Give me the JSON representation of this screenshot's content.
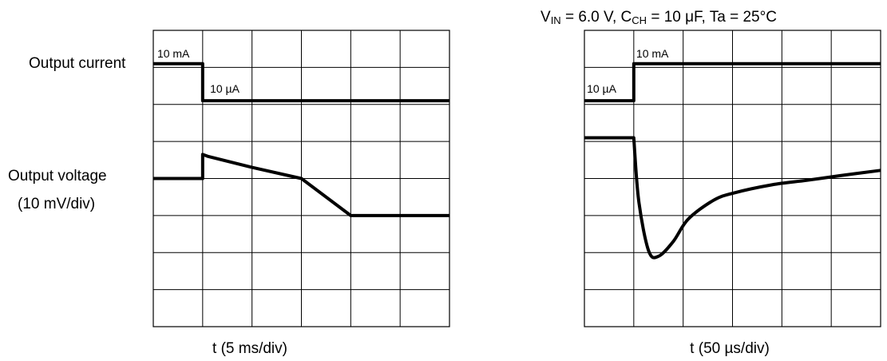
{
  "labels": {
    "output_current": "Output current",
    "output_voltage": "Output voltage",
    "voltage_scale": "(10 mV/div)"
  },
  "conditions": {
    "vin_sym": "V",
    "vin_sub": "IN",
    "vin_val": " = 6.0 V, ",
    "cch_sym": "C",
    "cch_sub": "CH",
    "cch_val": " = 10 μF, Ta = 25°C"
  },
  "chart_data": [
    {
      "type": "line",
      "title": "",
      "xlabel": "t (5 ms/div)",
      "grid": true,
      "divisions": {
        "x": 6,
        "y": 8
      },
      "series": [
        {
          "name": "Output current",
          "x": [
            0,
            1,
            1,
            6
          ],
          "y": [
            7.1,
            7.1,
            6.1,
            6.1
          ],
          "annotations": [
            {
              "text": "10 mA",
              "x": 0.08,
              "y": 7.35
            },
            {
              "text": "10 µA",
              "x": 1.15,
              "y": 6.4
            }
          ]
        },
        {
          "name": "Output voltage",
          "x": [
            0,
            1,
            1,
            1.1,
            2,
            3,
            4,
            6
          ],
          "y": [
            4.0,
            4.0,
            4.65,
            4.6,
            4.3,
            4.0,
            3.0,
            3.0
          ]
        }
      ]
    },
    {
      "type": "line",
      "title": "",
      "xlabel": "t (50 µs/div)",
      "grid": true,
      "divisions": {
        "x": 6,
        "y": 8
      },
      "series": [
        {
          "name": "Output current",
          "x": [
            0,
            1,
            1,
            6
          ],
          "y": [
            6.1,
            6.1,
            7.1,
            7.1
          ],
          "annotations": [
            {
              "text": "10 µA",
              "x": 0.05,
              "y": 6.4
            },
            {
              "text": "10 mA",
              "x": 1.05,
              "y": 7.35
            }
          ]
        },
        {
          "name": "Output voltage",
          "x": [
            0,
            1,
            1.1,
            1.3,
            1.5,
            1.8,
            2.1,
            2.6,
            3,
            3.8,
            4.5,
            5.2,
            6
          ],
          "y": [
            5.1,
            5.1,
            3.4,
            2.05,
            1.9,
            2.3,
            2.9,
            3.4,
            3.6,
            3.83,
            3.95,
            4.08,
            4.22
          ]
        }
      ]
    }
  ]
}
